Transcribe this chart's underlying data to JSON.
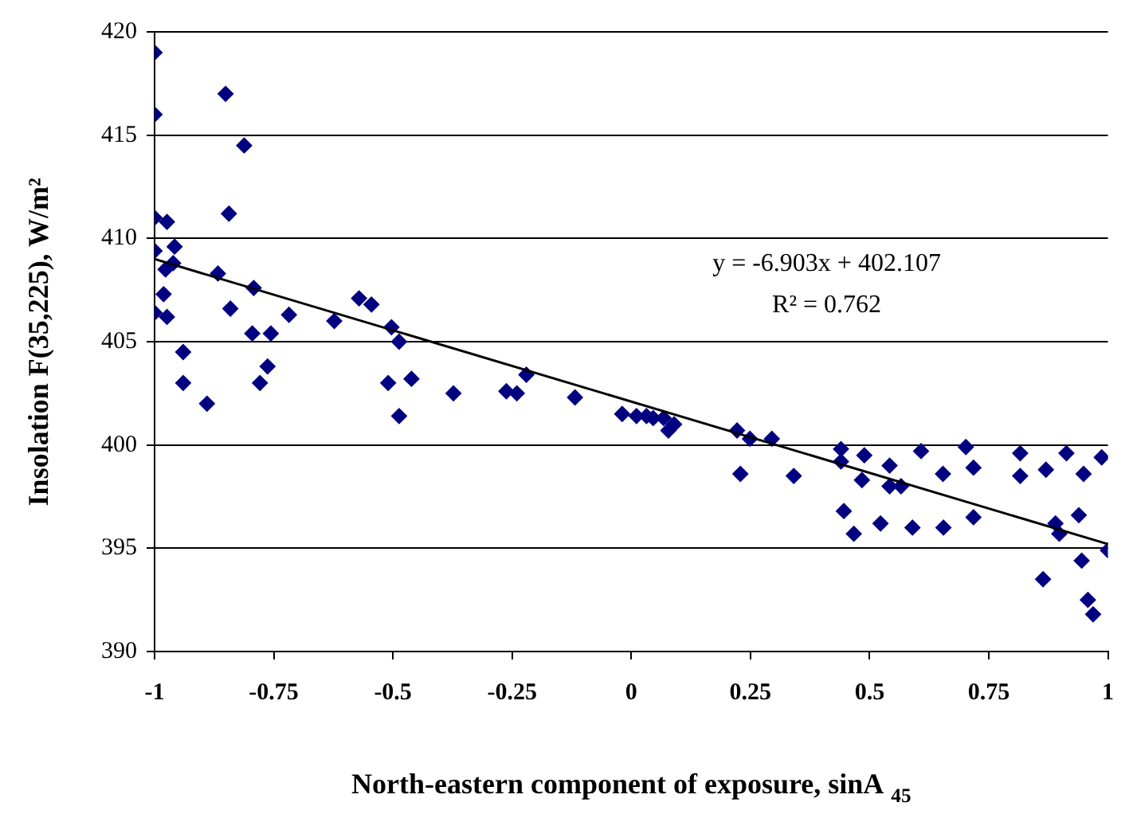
{
  "chart_data": {
    "type": "scatter",
    "xlabel": "North-eastern component of exposure, sinA $_{45}$",
    "ylabel": "Insolation F(35,225), W/m²",
    "annotations": [
      "y = -6.903x + 402.107",
      "R² = 0.762"
    ],
    "xlim": [
      -1,
      1
    ],
    "xticks": [
      -1,
      -0.75,
      -0.5,
      -0.25,
      0,
      0.25,
      0.5,
      0.75,
      1
    ],
    "ylim": [
      390,
      420
    ],
    "yticks": [
      390,
      395,
      400,
      405,
      410,
      415,
      420
    ],
    "grid": "y",
    "legend": false,
    "marker": "diamond",
    "series": [
      {
        "color": "#000080",
        "x": [
          -1,
          -1,
          -1,
          -1,
          -0.974,
          -0.958,
          -0.977,
          -0.961,
          -0.981,
          -1,
          -0.974,
          -0.94,
          -0.94,
          -0.89,
          -0.867,
          -0.851,
          -0.844,
          -0.812,
          -0.841,
          -0.792,
          -0.795,
          -0.756,
          -0.763,
          -0.779,
          -0.718,
          -0.623,
          -0.571,
          -0.545,
          -0.503,
          -0.487,
          -0.51,
          -0.461,
          -0.487,
          -0.373,
          -0.262,
          -0.24,
          -0.22,
          -0.118,
          -0.019,
          0.011,
          0.032,
          0.046,
          0.068,
          0.078,
          0.09,
          0.222,
          0.229,
          0.249,
          0.295,
          0.341,
          0.44,
          0.44,
          0.446,
          0.467,
          0.489,
          0.484,
          0.523,
          0.542,
          0.542,
          0.566,
          0.59,
          0.608,
          0.654,
          0.655,
          0.702,
          0.718,
          0.718,
          0.816,
          0.816,
          0.864,
          0.87,
          0.89,
          0.898,
          0.913,
          0.939,
          0.949,
          0.945,
          0.958,
          0.969,
          0.987,
          1
        ],
        "values": [
          419.0,
          416.0,
          411.0,
          409.4,
          410.8,
          409.6,
          408.5,
          408.8,
          407.3,
          406.4,
          406.2,
          404.5,
          403.0,
          402.0,
          408.3,
          417.0,
          411.2,
          414.5,
          406.6,
          407.6,
          405.4,
          405.4,
          403.8,
          403.0,
          406.3,
          406.0,
          407.1,
          406.8,
          405.7,
          405.0,
          403.0,
          403.2,
          401.4,
          402.5,
          402.6,
          402.5,
          403.4,
          402.3,
          401.5,
          401.4,
          401.4,
          401.3,
          401.3,
          400.7,
          401.0,
          400.7,
          398.6,
          400.3,
          400.3,
          398.5,
          399.8,
          399.2,
          396.8,
          395.7,
          399.5,
          398.3,
          396.2,
          399.0,
          398.0,
          398.0,
          396.0,
          399.7,
          398.6,
          396.0,
          399.9,
          398.9,
          396.5,
          399.6,
          398.5,
          393.5,
          398.8,
          396.2,
          395.7,
          399.6,
          396.6,
          398.6,
          394.4,
          392.5,
          391.8,
          399.4,
          394.9
        ]
      },
      {
        "type": "line",
        "color": "#000000",
        "marker": "none",
        "x": [
          -1,
          1
        ],
        "values": [
          409.0,
          395.2
        ]
      }
    ]
  }
}
